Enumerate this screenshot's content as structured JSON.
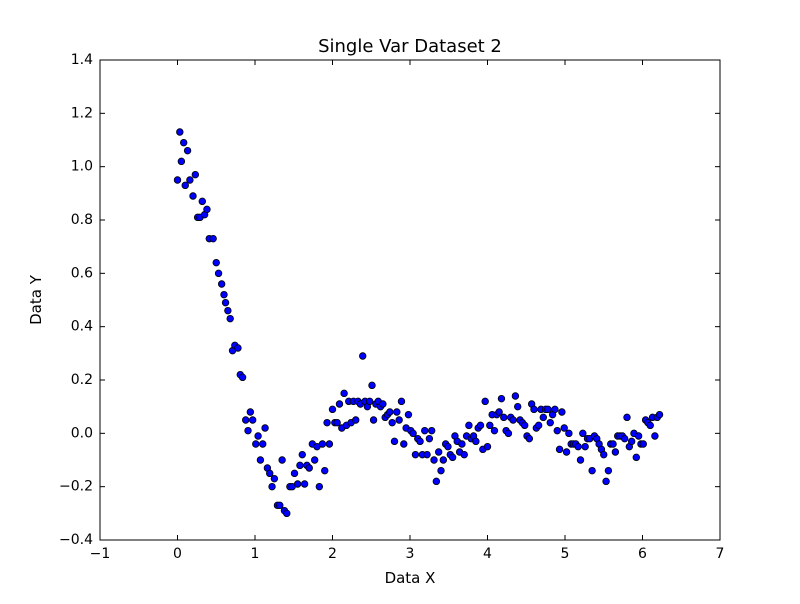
{
  "chart_data": {
    "type": "scatter",
    "title": "Single Var Dataset 2",
    "xlabel": "Data X",
    "ylabel": "Data Y",
    "xlim": [
      -1,
      7
    ],
    "ylim": [
      -0.4,
      1.4
    ],
    "xticks": [
      -1,
      0,
      1,
      2,
      3,
      4,
      5,
      6,
      7
    ],
    "yticks": [
      -0.4,
      -0.2,
      0.0,
      0.2,
      0.4,
      0.6,
      0.8,
      1.0,
      1.2,
      1.4
    ],
    "xtick_labels": [
      "−1",
      "0",
      "1",
      "2",
      "3",
      "4",
      "5",
      "6",
      "7"
    ],
    "ytick_labels": [
      "−0.4",
      "−0.2",
      "0.0",
      "0.2",
      "0.4",
      "0.6",
      "0.8",
      "1.0",
      "1.2",
      "1.4"
    ],
    "grid": false,
    "marker_color": "#0000ff",
    "marker_edge_color": "#000000",
    "points": [
      [
        0.0,
        0.95
      ],
      [
        0.03,
        1.13
      ],
      [
        0.05,
        1.02
      ],
      [
        0.08,
        1.09
      ],
      [
        0.1,
        0.93
      ],
      [
        0.13,
        1.06
      ],
      [
        0.16,
        0.95
      ],
      [
        0.2,
        0.89
      ],
      [
        0.23,
        0.97
      ],
      [
        0.26,
        0.81
      ],
      [
        0.29,
        0.81
      ],
      [
        0.32,
        0.87
      ],
      [
        0.35,
        0.82
      ],
      [
        0.38,
        0.84
      ],
      [
        0.41,
        0.73
      ],
      [
        0.46,
        0.73
      ],
      [
        0.5,
        0.64
      ],
      [
        0.53,
        0.6
      ],
      [
        0.57,
        0.56
      ],
      [
        0.6,
        0.52
      ],
      [
        0.62,
        0.49
      ],
      [
        0.65,
        0.46
      ],
      [
        0.68,
        0.43
      ],
      [
        0.71,
        0.31
      ],
      [
        0.74,
        0.33
      ],
      [
        0.78,
        0.32
      ],
      [
        0.81,
        0.22
      ],
      [
        0.84,
        0.21
      ],
      [
        0.88,
        0.05
      ],
      [
        0.91,
        0.01
      ],
      [
        0.94,
        0.08
      ],
      [
        0.97,
        0.05
      ],
      [
        1.01,
        -0.04
      ],
      [
        1.04,
        -0.01
      ],
      [
        1.07,
        -0.1
      ],
      [
        1.1,
        -0.04
      ],
      [
        1.13,
        0.02
      ],
      [
        1.16,
        -0.13
      ],
      [
        1.19,
        -0.15
      ],
      [
        1.22,
        -0.2
      ],
      [
        1.25,
        -0.17
      ],
      [
        1.29,
        -0.27
      ],
      [
        1.32,
        -0.27
      ],
      [
        1.35,
        -0.1
      ],
      [
        1.38,
        -0.29
      ],
      [
        1.41,
        -0.3
      ],
      [
        1.45,
        -0.2
      ],
      [
        1.48,
        -0.2
      ],
      [
        1.51,
        -0.15
      ],
      [
        1.55,
        -0.19
      ],
      [
        1.58,
        -0.12
      ],
      [
        1.61,
        -0.08
      ],
      [
        1.64,
        -0.19
      ],
      [
        1.67,
        -0.12
      ],
      [
        1.7,
        -0.13
      ],
      [
        1.74,
        -0.04
      ],
      [
        1.77,
        -0.1
      ],
      [
        1.8,
        -0.05
      ],
      [
        1.83,
        -0.2
      ],
      [
        1.87,
        -0.04
      ],
      [
        1.9,
        -0.14
      ],
      [
        1.93,
        0.04
      ],
      [
        1.96,
        -0.04
      ],
      [
        2.0,
        0.09
      ],
      [
        2.03,
        0.04
      ],
      [
        2.06,
        0.04
      ],
      [
        2.09,
        0.11
      ],
      [
        2.12,
        0.02
      ],
      [
        2.15,
        0.15
      ],
      [
        2.18,
        0.03
      ],
      [
        2.21,
        0.12
      ],
      [
        2.24,
        0.04
      ],
      [
        2.27,
        0.12
      ],
      [
        2.3,
        0.05
      ],
      [
        2.33,
        0.12
      ],
      [
        2.36,
        0.11
      ],
      [
        2.39,
        0.29
      ],
      [
        2.42,
        0.12
      ],
      [
        2.45,
        0.1
      ],
      [
        2.48,
        0.12
      ],
      [
        2.51,
        0.18
      ],
      [
        2.53,
        0.05
      ],
      [
        2.56,
        0.11
      ],
      [
        2.59,
        0.12
      ],
      [
        2.62,
        0.1
      ],
      [
        2.65,
        0.11
      ],
      [
        2.68,
        0.06
      ],
      [
        2.71,
        0.07
      ],
      [
        2.74,
        0.08
      ],
      [
        2.77,
        0.04
      ],
      [
        2.8,
        -0.03
      ],
      [
        2.83,
        0.08
      ],
      [
        2.86,
        0.05
      ],
      [
        2.89,
        0.12
      ],
      [
        2.92,
        -0.04
      ],
      [
        2.95,
        0.02
      ],
      [
        2.98,
        0.07
      ],
      [
        3.01,
        0.01
      ],
      [
        3.04,
        0.0
      ],
      [
        3.07,
        -0.08
      ],
      [
        3.1,
        -0.02
      ],
      [
        3.13,
        -0.03
      ],
      [
        3.16,
        -0.08
      ],
      [
        3.19,
        0.01
      ],
      [
        3.22,
        -0.08
      ],
      [
        3.25,
        -0.02
      ],
      [
        3.28,
        0.01
      ],
      [
        3.31,
        -0.1
      ],
      [
        3.34,
        -0.18
      ],
      [
        3.37,
        -0.07
      ],
      [
        3.4,
        -0.14
      ],
      [
        3.43,
        -0.1
      ],
      [
        3.46,
        -0.04
      ],
      [
        3.49,
        -0.05
      ],
      [
        3.52,
        -0.08
      ],
      [
        3.55,
        -0.09
      ],
      [
        3.58,
        -0.01
      ],
      [
        3.61,
        -0.03
      ],
      [
        3.64,
        -0.07
      ],
      [
        3.67,
        -0.04
      ],
      [
        3.7,
        -0.08
      ],
      [
        3.73,
        -0.01
      ],
      [
        3.76,
        0.03
      ],
      [
        3.79,
        -0.02
      ],
      [
        3.82,
        -0.01
      ],
      [
        3.85,
        -0.03
      ],
      [
        3.88,
        0.02
      ],
      [
        3.91,
        0.03
      ],
      [
        3.94,
        -0.06
      ],
      [
        3.97,
        0.12
      ],
      [
        4.0,
        -0.05
      ],
      [
        4.03,
        0.03
      ],
      [
        4.06,
        0.07
      ],
      [
        4.09,
        0.01
      ],
      [
        4.12,
        0.07
      ],
      [
        4.15,
        0.08
      ],
      [
        4.18,
        0.13
      ],
      [
        4.21,
        0.06
      ],
      [
        4.24,
        0.01
      ],
      [
        4.27,
        0.0
      ],
      [
        4.3,
        0.06
      ],
      [
        4.33,
        0.05
      ],
      [
        4.36,
        0.14
      ],
      [
        4.39,
        0.1
      ],
      [
        4.42,
        0.05
      ],
      [
        4.45,
        0.04
      ],
      [
        4.48,
        0.03
      ],
      [
        4.51,
        -0.01
      ],
      [
        4.54,
        -0.02
      ],
      [
        4.57,
        0.11
      ],
      [
        4.6,
        0.09
      ],
      [
        4.63,
        0.02
      ],
      [
        4.66,
        0.03
      ],
      [
        4.69,
        0.09
      ],
      [
        4.72,
        0.06
      ],
      [
        4.75,
        0.09
      ],
      [
        4.78,
        0.09
      ],
      [
        4.81,
        0.04
      ],
      [
        4.84,
        0.07
      ],
      [
        4.87,
        0.09
      ],
      [
        4.9,
        0.01
      ],
      [
        4.93,
        -0.06
      ],
      [
        4.96,
        0.08
      ],
      [
        4.99,
        0.02
      ],
      [
        5.02,
        -0.07
      ],
      [
        5.05,
        0.0
      ],
      [
        5.08,
        -0.04
      ],
      [
        5.11,
        -0.04
      ],
      [
        5.14,
        -0.04
      ],
      [
        5.17,
        -0.05
      ],
      [
        5.2,
        -0.1
      ],
      [
        5.23,
        0.0
      ],
      [
        5.26,
        -0.05
      ],
      [
        5.29,
        -0.02
      ],
      [
        5.32,
        -0.02
      ],
      [
        5.35,
        -0.14
      ],
      [
        5.38,
        -0.01
      ],
      [
        5.41,
        -0.02
      ],
      [
        5.44,
        -0.04
      ],
      [
        5.47,
        -0.06
      ],
      [
        5.5,
        -0.08
      ],
      [
        5.53,
        -0.18
      ],
      [
        5.56,
        -0.14
      ],
      [
        5.59,
        -0.04
      ],
      [
        5.62,
        -0.04
      ],
      [
        5.65,
        -0.07
      ],
      [
        5.68,
        -0.01
      ],
      [
        5.71,
        -0.01
      ],
      [
        5.74,
        -0.01
      ],
      [
        5.77,
        -0.02
      ],
      [
        5.8,
        0.06
      ],
      [
        5.83,
        -0.05
      ],
      [
        5.86,
        -0.03
      ],
      [
        5.89,
        0.0
      ],
      [
        5.92,
        -0.09
      ],
      [
        5.95,
        -0.01
      ],
      [
        5.98,
        -0.04
      ],
      [
        6.01,
        -0.04
      ],
      [
        6.04,
        0.05
      ],
      [
        6.07,
        0.04
      ],
      [
        6.1,
        0.03
      ],
      [
        6.13,
        0.06
      ],
      [
        6.16,
        -0.01
      ],
      [
        6.19,
        0.06
      ],
      [
        6.22,
        0.07
      ]
    ]
  }
}
